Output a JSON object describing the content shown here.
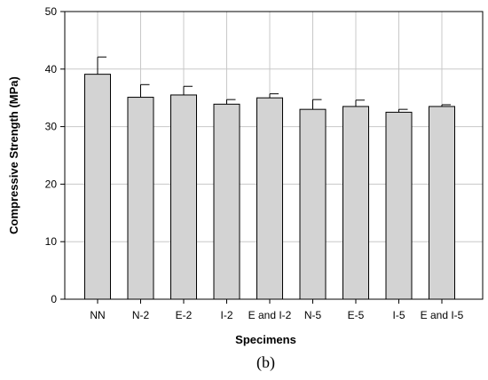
{
  "chart_data": {
    "type": "bar",
    "title": "",
    "caption": "(b)",
    "xlabel": "Specimens",
    "ylabel": "Compressive Strength (MPa)",
    "categories": [
      "NN",
      "N-2",
      "E-2",
      "I-2",
      "E and I-2",
      "N-5",
      "E-5",
      "I-5",
      "E and I-5"
    ],
    "values": [
      39.1,
      35.1,
      35.5,
      33.9,
      35.0,
      33.0,
      33.5,
      32.5,
      33.5
    ],
    "error": [
      3.0,
      2.2,
      1.5,
      0.8,
      0.7,
      1.7,
      1.1,
      0.5,
      0.3
    ],
    "ylim": [
      0,
      50
    ],
    "yticks": [
      0,
      10,
      20,
      30,
      40,
      50
    ],
    "grid": true,
    "bar_color": "#d3d3d3",
    "edge_color": "#000000"
  }
}
